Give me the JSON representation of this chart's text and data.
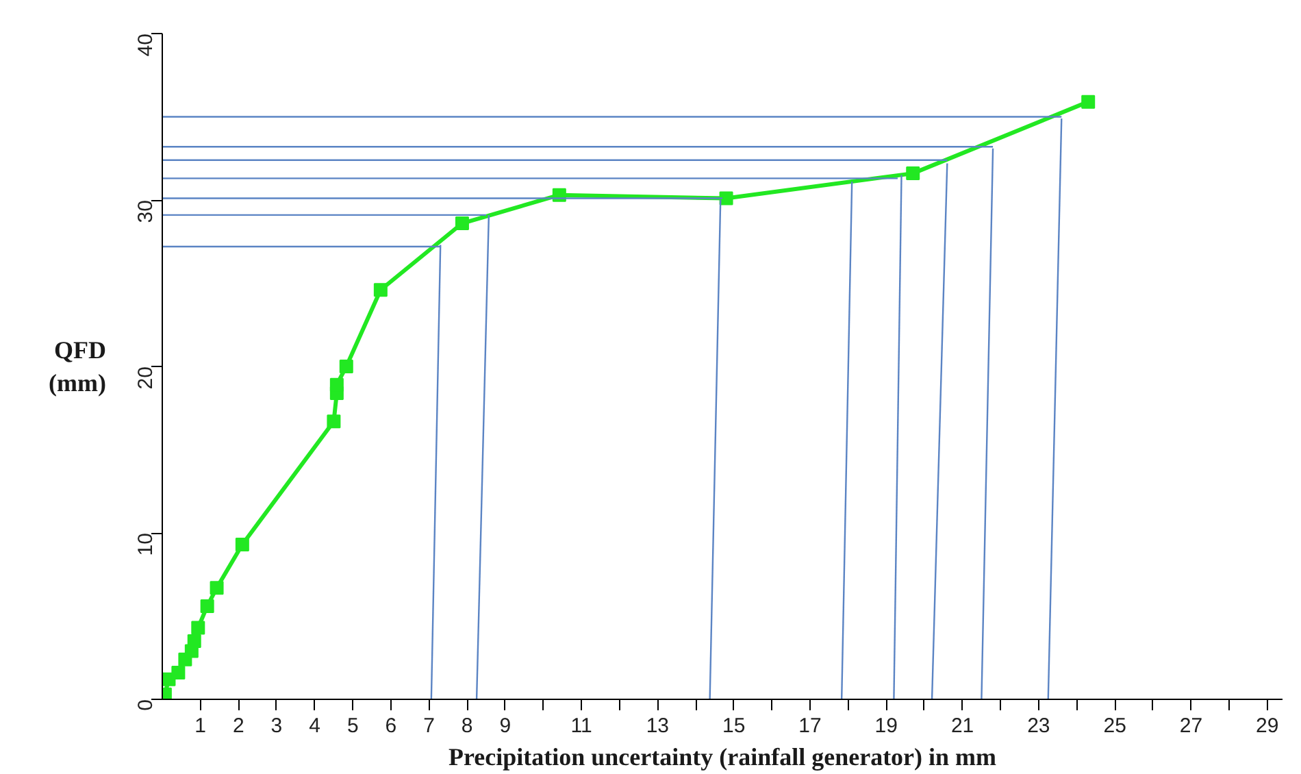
{
  "chart_data": {
    "type": "line",
    "xlabel": "Precipitation uncertainty (rainfall generator) in mm",
    "ylabel": "QFD (mm)",
    "xlim": [
      0,
      29.4
    ],
    "ylim": [
      0,
      40
    ],
    "xticks": [
      1,
      2,
      3,
      4,
      5,
      6,
      7,
      8,
      9,
      {
        "value": 10,
        "label": null
      },
      11,
      {
        "value": 12,
        "label": null
      },
      13,
      {
        "value": 14,
        "label": null
      },
      15,
      {
        "value": 16,
        "label": null
      },
      17,
      {
        "value": 18,
        "label": null
      },
      19,
      {
        "value": 20,
        "label": null
      },
      21,
      {
        "value": 22,
        "label": null
      },
      23,
      {
        "value": 24,
        "label": null
      },
      25,
      {
        "value": 26,
        "label": null
      },
      27,
      {
        "value": 28,
        "label": null
      },
      29
    ],
    "yticks": [
      0,
      10,
      20,
      30,
      40
    ],
    "grid": false,
    "series": [
      {
        "color": "#22e822",
        "marker": "square",
        "x": [
          0.07,
          0.17,
          0.42,
          0.6,
          0.77,
          0.84,
          0.94,
          1.18,
          1.43,
          2.1,
          4.5,
          4.58,
          4.58,
          4.83,
          5.73,
          7.87,
          10.42,
          14.8,
          19.7,
          24.3
        ],
        "values": [
          0.3,
          1.2,
          1.6,
          2.4,
          2.9,
          3.5,
          4.3,
          5.6,
          6.7,
          9.3,
          16.7,
          18.4,
          18.9,
          20.0,
          24.6,
          28.6,
          30.3,
          30.1,
          31.6,
          35.9
        ]
      },
      {
        "color": "#5b84c4",
        "marker": "none",
        "x": [
          0,
          23.6
        ],
        "values": [
          35.0,
          35.0
        ]
      },
      {
        "color": "#5b84c4",
        "marker": "none",
        "x": [
          0,
          21.8
        ],
        "values": [
          33.2,
          33.2
        ]
      },
      {
        "color": "#5b84c4",
        "marker": "none",
        "x": [
          0,
          20.6
        ],
        "values": [
          32.4,
          32.4
        ]
      },
      {
        "color": "#5b84c4",
        "marker": "none",
        "x": [
          0,
          19.3
        ],
        "values": [
          31.3,
          31.3
        ]
      },
      {
        "color": "#5b84c4",
        "marker": "none",
        "x": [
          0,
          14.7
        ],
        "values": [
          30.1,
          30.1
        ]
      },
      {
        "color": "#5b84c4",
        "marker": "none",
        "x": [
          0,
          8.5
        ],
        "values": [
          29.1,
          29.1
        ]
      },
      {
        "color": "#5b84c4",
        "marker": "none",
        "x": [
          0,
          7.3
        ],
        "values": [
          27.2,
          27.2
        ]
      },
      {
        "color": "#5b84c4",
        "marker": "none",
        "x": [
          7.06,
          7.3
        ],
        "values": [
          0,
          27.3
        ]
      },
      {
        "color": "#5b84c4",
        "marker": "none",
        "x": [
          8.25,
          8.57
        ],
        "values": [
          0,
          29.1
        ]
      },
      {
        "color": "#5b84c4",
        "marker": "none",
        "x": [
          14.37,
          14.65
        ],
        "values": [
          0,
          30.0
        ]
      },
      {
        "color": "#5b84c4",
        "marker": "none",
        "x": [
          17.83,
          18.1
        ],
        "values": [
          0,
          31.1
        ]
      },
      {
        "color": "#5b84c4",
        "marker": "none",
        "x": [
          19.2,
          19.4
        ],
        "values": [
          0,
          31.5
        ]
      },
      {
        "color": "#5b84c4",
        "marker": "none",
        "x": [
          20.2,
          20.6
        ],
        "values": [
          0,
          32.2
        ]
      },
      {
        "color": "#5b84c4",
        "marker": "none",
        "x": [
          21.5,
          21.8
        ],
        "values": [
          0,
          33.1
        ]
      },
      {
        "color": "#5b84c4",
        "marker": "none",
        "x": [
          23.25,
          23.6
        ],
        "values": [
          0,
          34.9
        ]
      }
    ]
  }
}
